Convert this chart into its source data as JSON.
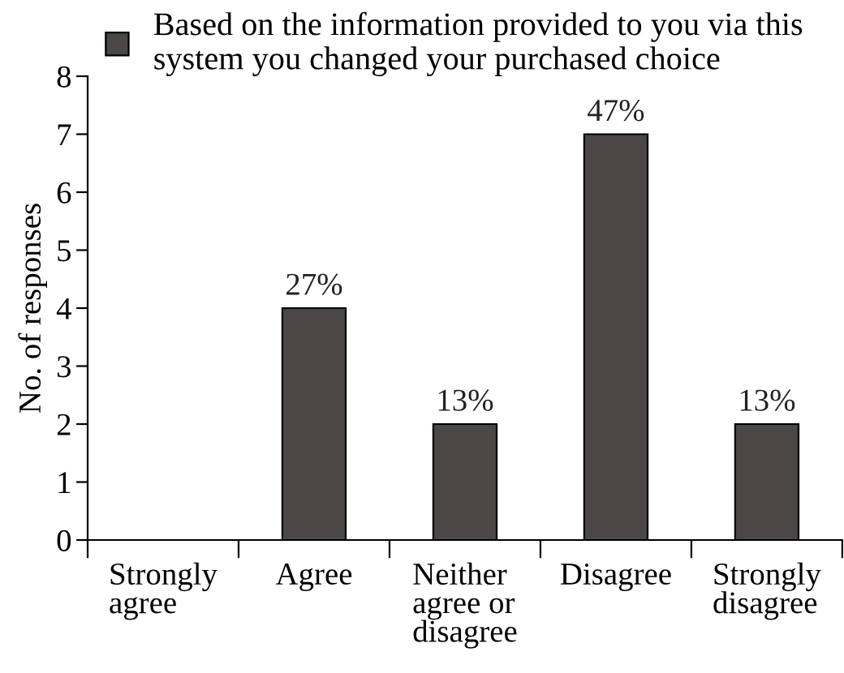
{
  "chart_data": {
    "type": "bar",
    "ylabel": "No. of responses",
    "categories": [
      "Strongly agree",
      "Agree",
      "Neither agree or disagree",
      "Disagree",
      "Strongly disagree"
    ],
    "series": [
      {
        "name": "Based on the information provided to you via this system you changed your purchased choice",
        "color": "#4b4746",
        "values": [
          0,
          4,
          2,
          7,
          2
        ]
      }
    ],
    "annotations": [
      {
        "text": "27%",
        "x": "Agree",
        "y": 4
      },
      {
        "text": "13%",
        "x": "Neither agree or disagree",
        "y": 2
      },
      {
        "text": "47%",
        "x": "Disagree",
        "y": 7
      },
      {
        "text": "13%",
        "x": "Strongly disagree",
        "y": 2
      }
    ],
    "ylim": [
      0,
      8
    ],
    "yticks": [
      0,
      1,
      2,
      3,
      4,
      5,
      6,
      7,
      8
    ],
    "legend": "top"
  }
}
